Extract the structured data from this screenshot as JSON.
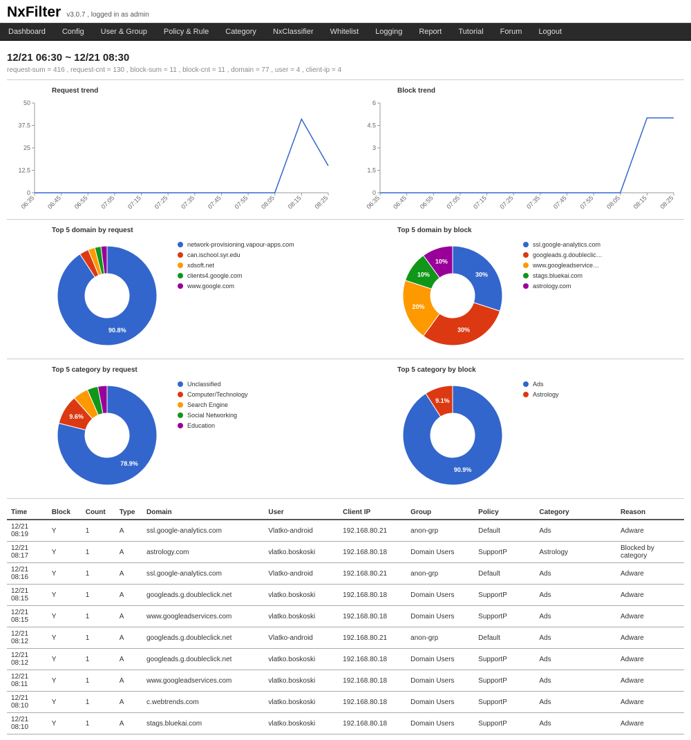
{
  "header": {
    "logo": "NxFilter",
    "version": "v3.0.7 , logged in as admin"
  },
  "nav": [
    "Dashboard",
    "Config",
    "User & Group",
    "Policy & Rule",
    "Category",
    "NxClassifier",
    "Whitelist",
    "Logging",
    "Report",
    "Tutorial",
    "Forum",
    "Logout"
  ],
  "range_title": "12/21 06:30 ~ 12/21 08:30",
  "summary": "request-sum = 416 , request-cnt = 130 , block-sum = 11 , block-cnt = 11 , domain = 77 , user = 4 , client-ip = 4",
  "colors": {
    "blue": "#3366cc",
    "red": "#dc3912",
    "orange": "#ff9900",
    "green": "#109618",
    "purple": "#990099",
    "axis": "#666666"
  },
  "request_trend": {
    "title": "Request trend",
    "x_labels": [
      "06:35",
      "06:45",
      "06:55",
      "07:05",
      "07:15",
      "07:25",
      "07:35",
      "07:45",
      "07:55",
      "08:05",
      "08:15",
      "08:25"
    ],
    "y_ticks": [
      0.0,
      12.5,
      25.0,
      37.5,
      50.0
    ],
    "ylim": [
      0,
      50
    ],
    "values": [
      0,
      0,
      0,
      0,
      0,
      0,
      0,
      0,
      0,
      0,
      41,
      15
    ],
    "line_color": "#3366cc"
  },
  "block_trend": {
    "title": "Block trend",
    "x_labels": [
      "06:35",
      "06:45",
      "06:55",
      "07:05",
      "07:15",
      "07:25",
      "07:35",
      "07:45",
      "07:55",
      "08:05",
      "08:15",
      "08:25"
    ],
    "y_ticks": [
      0.0,
      1.5,
      3.0,
      4.5,
      6.0
    ],
    "ylim": [
      0,
      6
    ],
    "values": [
      0,
      0,
      0,
      0,
      0,
      0,
      0,
      0,
      0,
      0,
      5,
      5
    ],
    "line_color": "#3366cc"
  },
  "top_domain_request": {
    "title": "Top 5 domain by request",
    "main_pct_label": "90.8%",
    "slices": [
      {
        "label": "network-provisioning.vapour-apps.com",
        "value": 90.8,
        "color": "#3366cc"
      },
      {
        "label": "can.ischool.syr.edu",
        "value": 3.0,
        "color": "#dc3912"
      },
      {
        "label": "xdsoft.net",
        "value": 2.2,
        "color": "#ff9900"
      },
      {
        "label": "clients4.google.com",
        "value": 2.0,
        "color": "#109618"
      },
      {
        "label": "www.google.com",
        "value": 2.0,
        "color": "#990099"
      }
    ]
  },
  "top_domain_block": {
    "title": "Top 5 domain by block",
    "slices": [
      {
        "label": "ssl.google-analytics.com",
        "value": 30,
        "color": "#3366cc",
        "show": "30%"
      },
      {
        "label": "googleads.g.doubleclic…",
        "value": 30,
        "color": "#dc3912",
        "show": "30%"
      },
      {
        "label": "www.googleadservice…",
        "value": 20,
        "color": "#ff9900",
        "show": "20%"
      },
      {
        "label": "stags.bluekai.com",
        "value": 10,
        "color": "#109618",
        "show": "10%"
      },
      {
        "label": "astrology.com",
        "value": 10,
        "color": "#990099",
        "show": "10%"
      }
    ]
  },
  "top_category_request": {
    "title": "Top 5 category by request",
    "slices": [
      {
        "label": "Unclassified",
        "value": 78.9,
        "color": "#3366cc",
        "show": "78.9%"
      },
      {
        "label": "Computer/Technology",
        "value": 9.6,
        "color": "#dc3912",
        "show": "9.6%"
      },
      {
        "label": "Search Engine",
        "value": 5.0,
        "color": "#ff9900"
      },
      {
        "label": "Social Networking",
        "value": 3.5,
        "color": "#109618"
      },
      {
        "label": "Education",
        "value": 3.0,
        "color": "#990099"
      }
    ]
  },
  "top_category_block": {
    "title": "Top 5 category by block",
    "slices": [
      {
        "label": "Ads",
        "value": 90.9,
        "color": "#3366cc",
        "show": "90.9%"
      },
      {
        "label": "Astrology",
        "value": 9.1,
        "color": "#dc3912",
        "show": "9.1%"
      }
    ]
  },
  "table": {
    "columns": [
      "Time",
      "Block",
      "Count",
      "Type",
      "Domain",
      "User",
      "Client IP",
      "Group",
      "Policy",
      "Category",
      "Reason"
    ],
    "widths": [
      "6%",
      "5%",
      "5%",
      "4%",
      "18%",
      "11%",
      "10%",
      "10%",
      "9%",
      "12%",
      "10%"
    ],
    "rows": [
      [
        "12/21 08:19",
        "Y",
        "1",
        "A",
        "ssl.google-analytics.com",
        "Vlatko-android",
        "192.168.80.21",
        "anon-grp",
        "Default",
        "Ads",
        "Adware"
      ],
      [
        "12/21 08:17",
        "Y",
        "1",
        "A",
        "astrology.com",
        "vlatko.boskoski",
        "192.168.80.18",
        "Domain Users",
        "SupportP",
        "Astrology",
        "Blocked by category"
      ],
      [
        "12/21 08:16",
        "Y",
        "1",
        "A",
        "ssl.google-analytics.com",
        "Vlatko-android",
        "192.168.80.21",
        "anon-grp",
        "Default",
        "Ads",
        "Adware"
      ],
      [
        "12/21 08:15",
        "Y",
        "1",
        "A",
        "googleads.g.doubleclick.net",
        "vlatko.boskoski",
        "192.168.80.18",
        "Domain Users",
        "SupportP",
        "Ads",
        "Adware"
      ],
      [
        "12/21 08:15",
        "Y",
        "1",
        "A",
        "www.googleadservices.com",
        "vlatko.boskoski",
        "192.168.80.18",
        "Domain Users",
        "SupportP",
        "Ads",
        "Adware"
      ],
      [
        "12/21 08:12",
        "Y",
        "1",
        "A",
        "googleads.g.doubleclick.net",
        "Vlatko-android",
        "192.168.80.21",
        "anon-grp",
        "Default",
        "Ads",
        "Adware"
      ],
      [
        "12/21 08:12",
        "Y",
        "1",
        "A",
        "googleads.g.doubleclick.net",
        "vlatko.boskoski",
        "192.168.80.18",
        "Domain Users",
        "SupportP",
        "Ads",
        "Adware"
      ],
      [
        "12/21 08:11",
        "Y",
        "1",
        "A",
        "www.googleadservices.com",
        "vlatko.boskoski",
        "192.168.80.18",
        "Domain Users",
        "SupportP",
        "Ads",
        "Adware"
      ],
      [
        "12/21 08:10",
        "Y",
        "1",
        "A",
        "c.webtrends.com",
        "vlatko.boskoski",
        "192.168.80.18",
        "Domain Users",
        "SupportP",
        "Ads",
        "Adware"
      ],
      [
        "12/21 08:10",
        "Y",
        "1",
        "A",
        "stags.bluekai.com",
        "vlatko.boskoski",
        "192.168.80.18",
        "Domain Users",
        "SupportP",
        "Ads",
        "Adware"
      ]
    ]
  }
}
